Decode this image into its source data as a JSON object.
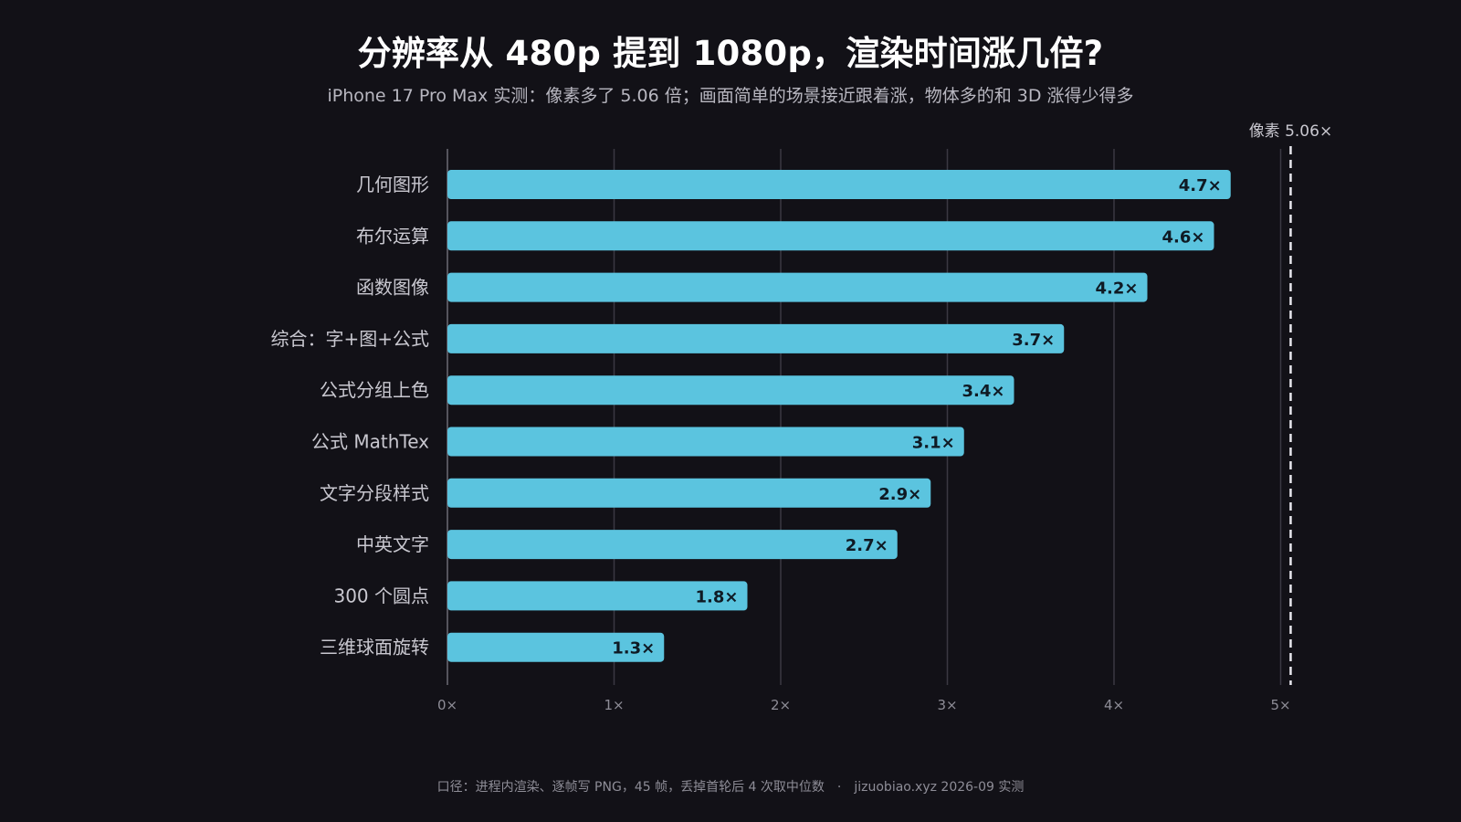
{
  "header": {
    "title": "分辨率从 480p 提到 1080p，渲染时间涨几倍?",
    "subtitle": "iPhone 17 Pro Max 实测：像素多了 5.06 倍；画面简单的场景接近跟着涨，物体多的和 3D 涨得少得多"
  },
  "footer": {
    "method": "口径：进程内渲染、逐帧写 PNG，45 帧，丢掉首轮后 4 次取中位数",
    "separator": "·",
    "source": "jizuobiao.xyz 2026-09 实测"
  },
  "colors": {
    "background": "#121117",
    "bar": "#5bc4df",
    "grid": "#3a3942",
    "reference_line": "#e8e8ee"
  },
  "chart_data": {
    "type": "bar",
    "orientation": "horizontal",
    "categories": [
      "几何图形",
      "布尔运算",
      "函数图像",
      "综合：字+图+公式",
      "公式分组上色",
      "公式 MathTex",
      "文字分段样式",
      "中英文字",
      "300 个圆点",
      "三维球面旋转"
    ],
    "values": [
      4.7,
      4.6,
      4.2,
      3.7,
      3.4,
      3.1,
      2.9,
      2.7,
      1.8,
      1.3
    ],
    "value_labels": [
      "4.7×",
      "4.6×",
      "4.2×",
      "3.7×",
      "3.4×",
      "3.1×",
      "2.9×",
      "2.7×",
      "1.8×",
      "1.3×"
    ],
    "xlim": [
      0,
      5
    ],
    "xticks": [
      0,
      1,
      2,
      3,
      4,
      5
    ],
    "xtick_labels": [
      "0×",
      "1×",
      "2×",
      "3×",
      "4×",
      "5×"
    ],
    "grid": "vertical",
    "reference": {
      "value": 5.06,
      "label": "像素 5.06×",
      "style": "dashed"
    }
  }
}
